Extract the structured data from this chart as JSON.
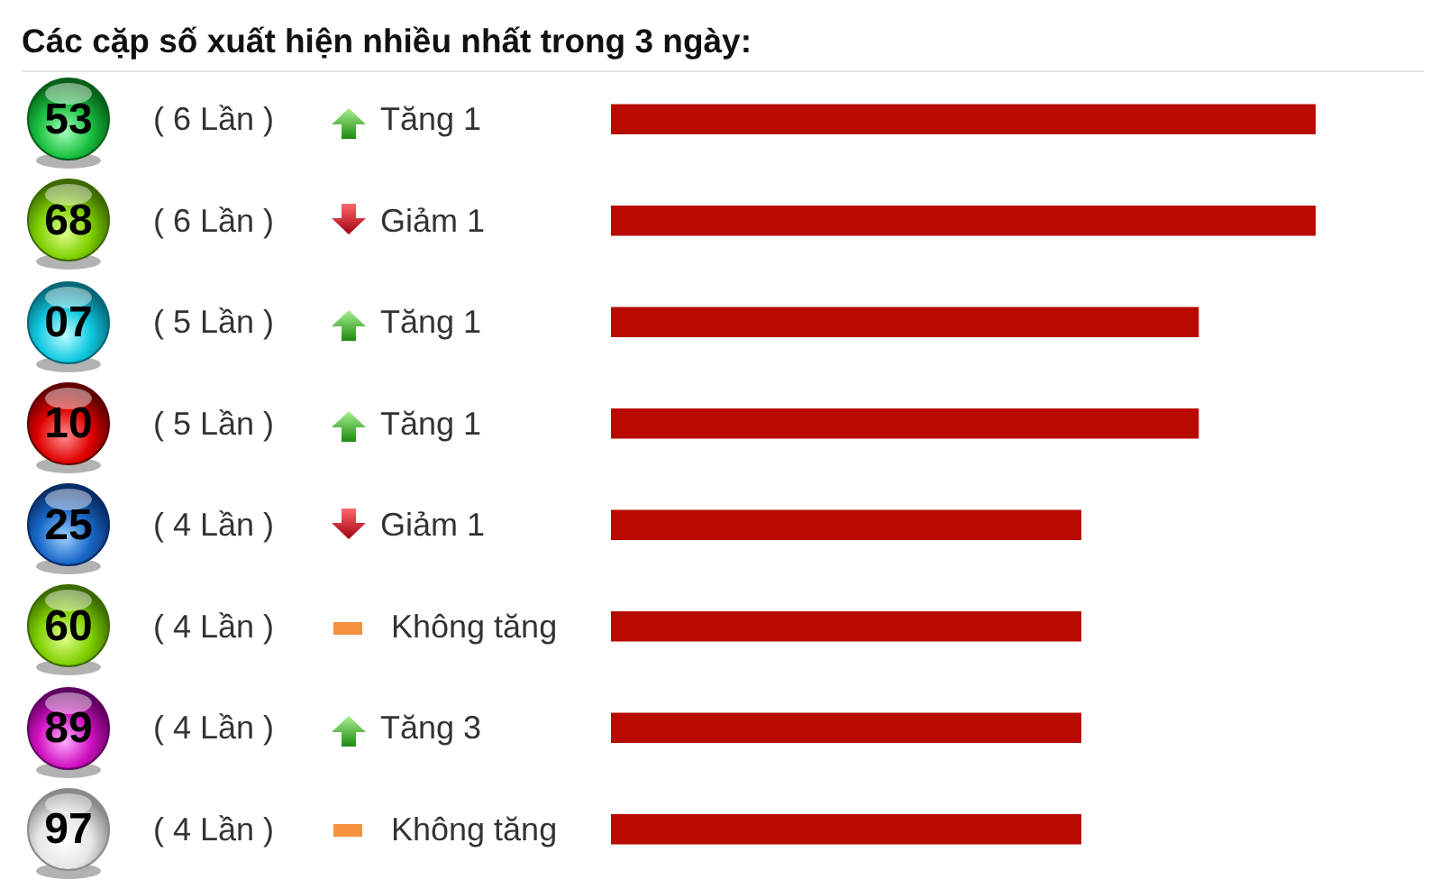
{
  "chart_data": {
    "type": "bar",
    "orientation": "horizontal",
    "title": "Các cặp số xuất hiện nhiều nhất trong 3 ngày:",
    "categories": [
      "53",
      "68",
      "07",
      "10",
      "25",
      "60",
      "89",
      "97"
    ],
    "values": [
      6,
      6,
      5,
      5,
      4,
      4,
      4,
      4
    ],
    "color": "#b80a00",
    "value_labels": [
      "( 6 Lần )",
      "( 6 Lần )",
      "( 5 Lần )",
      "( 5 Lần )",
      "( 4 Lần )",
      "( 4 Lần )",
      "( 4 Lần )",
      "( 4 Lần )"
    ],
    "annotations": [
      "Tăng 1",
      "Giảm 1",
      "Tăng 1",
      "Tăng 1",
      "Giảm 1",
      "Không tăng",
      "Tăng 3",
      "Không tăng"
    ],
    "tick_labels": "y"
  }
}
